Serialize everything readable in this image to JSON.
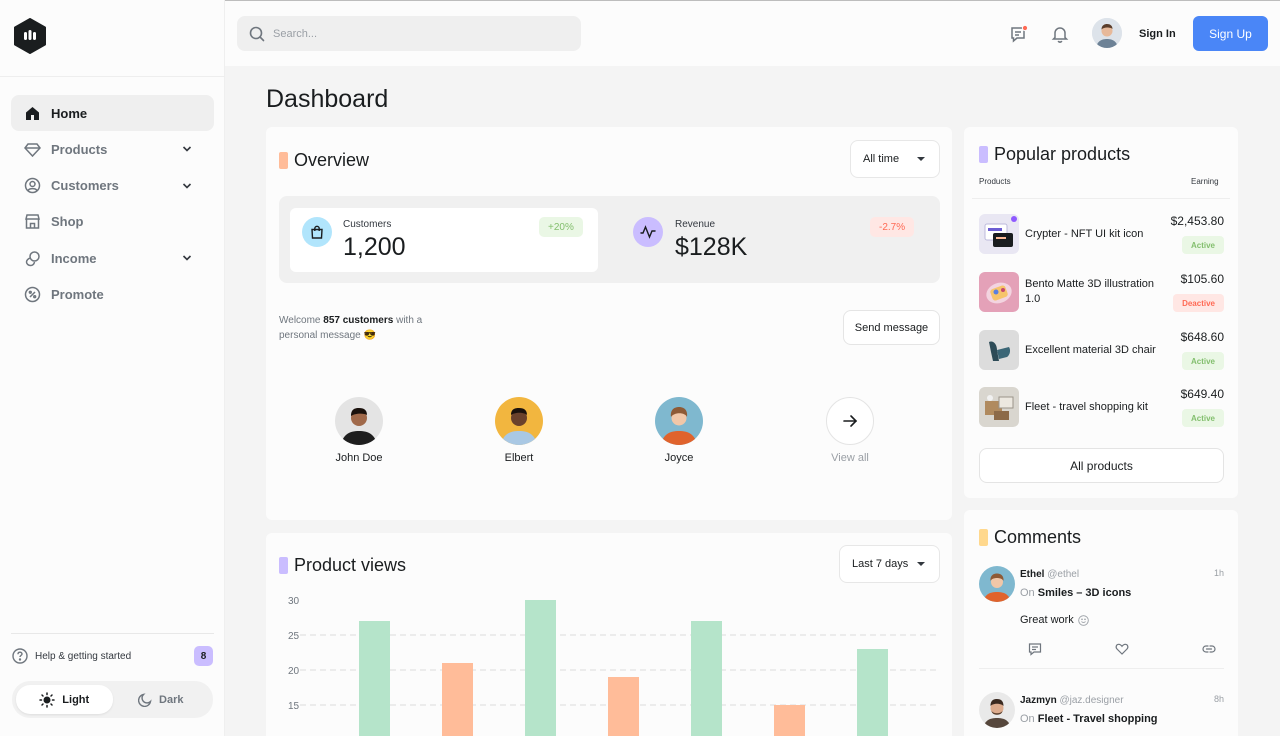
{
  "sidebar": {
    "items": [
      {
        "label": "Home",
        "icon": "home-icon",
        "active": true
      },
      {
        "label": "Products",
        "icon": "diamond-icon",
        "expandable": true
      },
      {
        "label": "Customers",
        "icon": "user-circle-icon",
        "expandable": true
      },
      {
        "label": "Shop",
        "icon": "store-icon"
      },
      {
        "label": "Income",
        "icon": "coin-icon",
        "expandable": true
      },
      {
        "label": "Promote",
        "icon": "percent-badge-icon"
      }
    ],
    "help_label": "Help & getting started",
    "help_count": "8",
    "theme_light": "Light",
    "theme_dark": "Dark"
  },
  "topbar": {
    "search_placeholder": "Search...",
    "signin_label": "Sign In",
    "signup_label": "Sign Up"
  },
  "page_title": "Dashboard",
  "overview": {
    "title": "Overview",
    "filter": "All time",
    "stats": [
      {
        "label": "Customers",
        "value": "1,200",
        "change": "+20%",
        "icon": "shopping-bag-icon"
      },
      {
        "label": "Revenue",
        "value": "$128K",
        "change": "-2.7%",
        "icon": "activity-icon"
      }
    ],
    "welcome_prefix": "Welcome ",
    "welcome_bold": "857 customers",
    "welcome_suffix": " with a personal message 😎",
    "send_label": "Send message",
    "customers": [
      {
        "name": "John Doe"
      },
      {
        "name": "Elbert"
      },
      {
        "name": "Joyce"
      }
    ],
    "view_all_label": "View all"
  },
  "product_views": {
    "title": "Product views",
    "filter": "Last 7 days"
  },
  "chart_data": {
    "type": "bar",
    "title": "Product views",
    "categories": [
      "",
      "",
      "",
      "",
      "",
      "",
      ""
    ],
    "values": [
      27,
      21,
      30,
      19,
      27,
      15,
      23
    ],
    "colors": [
      "#b5e4ca",
      "#ffbc99",
      "#b5e4ca",
      "#ffbc99",
      "#b5e4ca",
      "#ffbc99",
      "#b5e4ca"
    ],
    "yticks": [
      30,
      25,
      20,
      15
    ],
    "grid": true
  },
  "popular": {
    "title": "Popular products",
    "col_products": "Products",
    "col_earning": "Earning",
    "items": [
      {
        "name": "Crypter - NFT UI kit icon",
        "price": "$2,453.80",
        "status": "Active"
      },
      {
        "name": "Bento Matte 3D illustration 1.0",
        "price": "$105.60",
        "status": "Deactive"
      },
      {
        "name": "Excellent material 3D chair",
        "price": "$648.60",
        "status": "Active"
      },
      {
        "name": "Fleet - travel shopping kit",
        "price": "$649.40",
        "status": "Active"
      }
    ],
    "all_label": "All products"
  },
  "comments": {
    "title": "Comments",
    "items": [
      {
        "name": "Ethel",
        "handle": "@ethel",
        "on": "On ",
        "target": "Smiles – 3D icons",
        "time": "1h",
        "text": "Great work"
      },
      {
        "name": "Jazmyn",
        "handle": "@jaz.designer",
        "on": "On ",
        "target": "Fleet - Travel shopping",
        "time": "8h"
      }
    ]
  },
  "colors": {
    "accent_blue": "#4a86f7",
    "orange_tag": "#ffbc99",
    "purple_tag": "#cabdff",
    "yellow_tag": "#ffd88d"
  }
}
